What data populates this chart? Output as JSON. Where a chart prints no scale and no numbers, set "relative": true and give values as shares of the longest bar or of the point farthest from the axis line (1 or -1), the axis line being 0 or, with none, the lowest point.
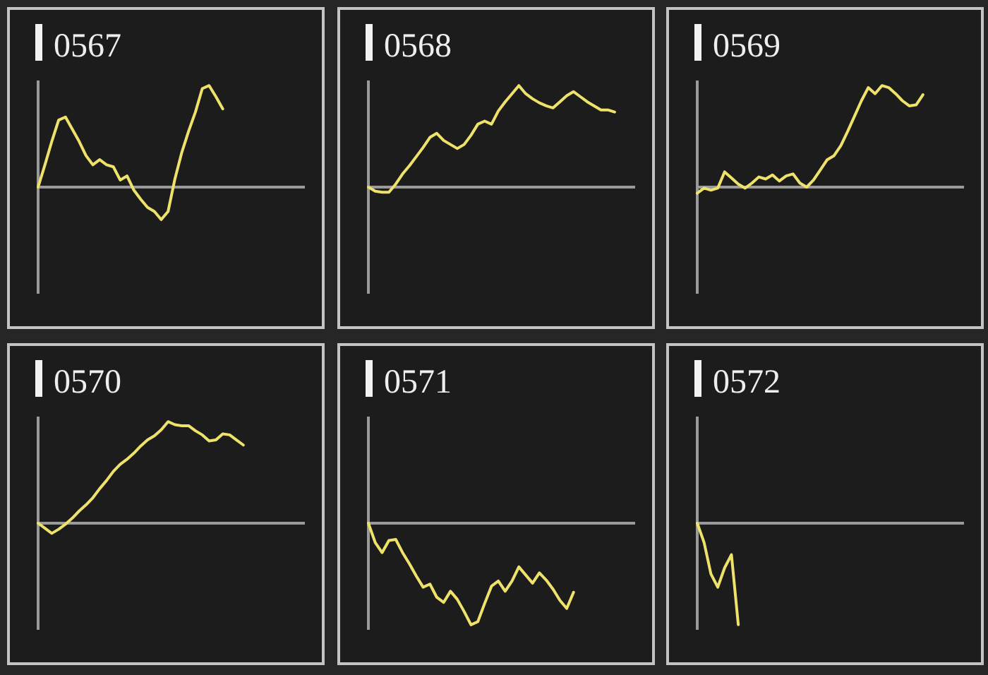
{
  "chart_data": [
    {
      "type": "line",
      "title": "0567",
      "relative": true,
      "color": "#eee26a",
      "categories": [
        null,
        null,
        null,
        null,
        null,
        null,
        null,
        null,
        null,
        null,
        null,
        null,
        null,
        null,
        null,
        null,
        null,
        null,
        null,
        null,
        null,
        null,
        null,
        null,
        null,
        null,
        null,
        null,
        null,
        null,
        null,
        null,
        null,
        null,
        null,
        null,
        null,
        null,
        null,
        null
      ],
      "values": [
        0,
        0.22,
        0.45,
        0.66,
        0.69,
        0.57,
        0.45,
        0.31,
        0.22,
        0.27,
        0.22,
        0.2,
        0.07,
        0.11,
        -0.03,
        -0.12,
        -0.2,
        -0.24,
        -0.32,
        -0.24,
        0.08,
        0.34,
        0.55,
        0.74,
        0.97,
        1,
        0.89,
        0.77,
        null,
        null,
        null,
        null,
        null,
        null,
        null,
        null,
        null,
        null,
        null,
        null
      ]
    },
    {
      "type": "line",
      "title": "0568",
      "relative": true,
      "color": "#eee26a",
      "categories": [
        null,
        null,
        null,
        null,
        null,
        null,
        null,
        null,
        null,
        null,
        null,
        null,
        null,
        null,
        null,
        null,
        null,
        null,
        null,
        null,
        null,
        null,
        null,
        null,
        null,
        null,
        null,
        null,
        null,
        null,
        null,
        null,
        null,
        null,
        null,
        null,
        null,
        null,
        null,
        null
      ],
      "values": [
        0,
        -0.04,
        -0.05,
        -0.05,
        0.03,
        0.13,
        0.21,
        0.3,
        0.39,
        0.49,
        0.53,
        0.46,
        0.42,
        0.38,
        0.42,
        0.51,
        0.62,
        0.65,
        0.62,
        0.75,
        0.84,
        0.92,
        1,
        0.92,
        0.87,
        0.83,
        0.8,
        0.78,
        0.84,
        0.9,
        0.94,
        0.89,
        0.84,
        0.8,
        0.76,
        0.76,
        0.74,
        null,
        null,
        null
      ]
    },
    {
      "type": "line",
      "title": "0569",
      "relative": true,
      "color": "#eee26a",
      "categories": [
        null,
        null,
        null,
        null,
        null,
        null,
        null,
        null,
        null,
        null,
        null,
        null,
        null,
        null,
        null,
        null,
        null,
        null,
        null,
        null,
        null,
        null,
        null,
        null,
        null,
        null,
        null,
        null,
        null,
        null,
        null,
        null,
        null,
        null,
        null,
        null,
        null,
        null,
        null,
        null
      ],
      "values": [
        -0.06,
        -0.01,
        -0.03,
        -0.01,
        0.15,
        0.09,
        0.03,
        -0.01,
        0.04,
        0.1,
        0.08,
        0.12,
        0.06,
        0.11,
        0.13,
        0.04,
        0,
        0.07,
        0.17,
        0.27,
        0.31,
        0.41,
        0.55,
        0.7,
        0.85,
        0.98,
        0.92,
        1,
        0.98,
        0.92,
        0.85,
        0.8,
        0.81,
        0.91,
        null,
        null,
        null,
        null,
        null,
        null
      ]
    },
    {
      "type": "line",
      "title": "0570",
      "relative": true,
      "color": "#eee26a",
      "categories": [
        null,
        null,
        null,
        null,
        null,
        null,
        null,
        null,
        null,
        null,
        null,
        null,
        null,
        null,
        null,
        null,
        null,
        null,
        null,
        null,
        null,
        null,
        null,
        null,
        null,
        null,
        null,
        null,
        null,
        null,
        null,
        null,
        null,
        null,
        null,
        null,
        null,
        null,
        null,
        null
      ],
      "values": [
        0,
        -0.05,
        -0.1,
        -0.06,
        -0.01,
        0.05,
        0.12,
        0.18,
        0.25,
        0.34,
        0.42,
        0.51,
        0.58,
        0.63,
        0.69,
        0.76,
        0.82,
        0.86,
        0.92,
        1,
        0.97,
        0.96,
        0.96,
        0.91,
        0.87,
        0.81,
        0.82,
        0.88,
        0.87,
        0.82,
        0.77,
        null,
        null,
        null,
        null,
        null,
        null,
        null,
        null,
        null
      ]
    },
    {
      "type": "line",
      "title": "0571",
      "relative": true,
      "color": "#eee26a",
      "categories": [
        null,
        null,
        null,
        null,
        null,
        null,
        null,
        null,
        null,
        null,
        null,
        null,
        null,
        null,
        null,
        null,
        null,
        null,
        null,
        null,
        null,
        null,
        null,
        null,
        null,
        null,
        null,
        null,
        null,
        null,
        null,
        null,
        null,
        null,
        null,
        null,
        null,
        null,
        null,
        null
      ],
      "values": [
        0,
        -0.19,
        -0.29,
        -0.17,
        -0.16,
        -0.29,
        -0.4,
        -0.52,
        -0.63,
        -0.6,
        -0.73,
        -0.78,
        -0.67,
        -0.75,
        -0.87,
        -1,
        -0.97,
        -0.79,
        -0.62,
        -0.57,
        -0.67,
        -0.57,
        -0.43,
        -0.51,
        -0.59,
        -0.49,
        -0.56,
        -0.65,
        -0.76,
        -0.84,
        -0.68,
        null,
        null,
        null,
        null,
        null,
        null,
        null,
        null,
        null
      ]
    },
    {
      "type": "line",
      "title": "0572",
      "relative": true,
      "color": "#eee26a",
      "categories": [
        null,
        null,
        null,
        null,
        null,
        null,
        null,
        null,
        null,
        null,
        null,
        null,
        null,
        null,
        null,
        null,
        null,
        null,
        null,
        null,
        null,
        null,
        null,
        null,
        null,
        null,
        null,
        null,
        null,
        null,
        null,
        null,
        null,
        null,
        null,
        null,
        null,
        null,
        null,
        null
      ],
      "values": [
        0,
        -0.19,
        -0.5,
        -0.63,
        -0.44,
        -0.31,
        -1,
        null,
        null,
        null,
        null,
        null,
        null,
        null,
        null,
        null,
        null,
        null,
        null,
        null,
        null,
        null,
        null,
        null,
        null,
        null,
        null,
        null,
        null,
        null,
        null,
        null,
        null,
        null,
        null,
        null,
        null,
        null,
        null,
        null
      ]
    }
  ]
}
